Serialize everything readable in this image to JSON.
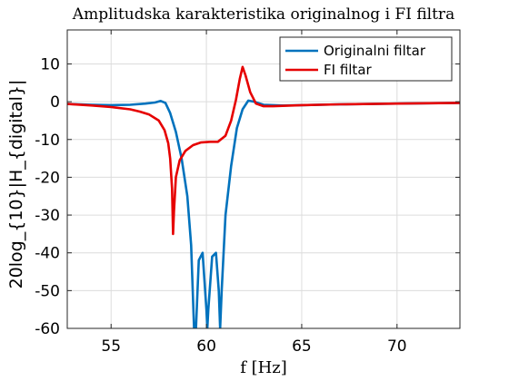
{
  "chart_data": {
    "type": "line",
    "title": "Amplitudska karakteristika originalnog i FI filtra",
    "xlabel": "f [Hz]",
    "ylabel": "20log_{10}|H_{digital}|",
    "xlim": [
      52.7,
      73.3
    ],
    "ylim": [
      -60,
      19
    ],
    "xticks": [
      55,
      60,
      65,
      70
    ],
    "yticks": [
      -60,
      -50,
      -40,
      -30,
      -20,
      -10,
      0,
      10
    ],
    "xtick_labels": [
      "55",
      "60",
      "65",
      "70"
    ],
    "ytick_labels": [
      "-60",
      "-50",
      "-40",
      "-30",
      "-20",
      "-10",
      "0",
      "10"
    ],
    "grid": true,
    "legend_position": "top-right",
    "series": [
      {
        "name": "Originalni filtar",
        "color": "#0072BD",
        "x": [
          52.7,
          54.0,
          55.0,
          56.0,
          56.8,
          57.3,
          57.6,
          57.85,
          58.1,
          58.4,
          58.7,
          59.0,
          59.2,
          59.35,
          59.45,
          59.6,
          59.8,
          60.0,
          60.05,
          60.1,
          60.3,
          60.5,
          60.65,
          60.72,
          60.8,
          61.0,
          61.3,
          61.6,
          61.9,
          62.2,
          62.5,
          63.0,
          64.0,
          65.0,
          67.0,
          70.0,
          73.3
        ],
        "y": [
          -0.6,
          -0.8,
          -0.9,
          -0.8,
          -0.5,
          -0.2,
          0.2,
          -0.3,
          -3.0,
          -8.0,
          -15.0,
          -25.0,
          -38.0,
          -60.0,
          -60.0,
          -42.0,
          -40.0,
          -55.0,
          -60.0,
          -55.0,
          -41.0,
          -40.0,
          -50.0,
          -60.0,
          -50.0,
          -30.0,
          -17.0,
          -7.0,
          -2.0,
          0.3,
          0.0,
          -0.8,
          -1.0,
          -0.9,
          -0.7,
          -0.5,
          -0.3
        ]
      },
      {
        "name": "FI filtar",
        "color": "#E60000",
        "x": [
          52.7,
          54.0,
          55.0,
          56.0,
          56.5,
          57.0,
          57.5,
          57.8,
          58.0,
          58.1,
          58.2,
          58.25,
          58.3,
          58.4,
          58.6,
          58.9,
          59.3,
          59.7,
          60.2,
          60.6,
          61.0,
          61.3,
          61.55,
          61.75,
          61.9,
          62.05,
          62.3,
          62.6,
          63.0,
          63.5,
          64.0,
          65.0,
          67.0,
          70.0,
          73.3
        ],
        "y": [
          -0.6,
          -1.0,
          -1.4,
          -2.0,
          -2.6,
          -3.4,
          -5.0,
          -7.5,
          -11.0,
          -15.0,
          -23.0,
          -35.0,
          -29.0,
          -20.0,
          -15.5,
          -13.0,
          -11.5,
          -10.8,
          -10.6,
          -10.6,
          -9.0,
          -5.0,
          0.5,
          6.0,
          9.2,
          7.0,
          2.5,
          -0.5,
          -1.2,
          -1.2,
          -1.1,
          -0.9,
          -0.7,
          -0.5,
          -0.3
        ]
      }
    ]
  }
}
